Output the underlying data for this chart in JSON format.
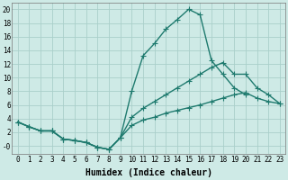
{
  "xlabel": "Humidex (Indice chaleur)",
  "bg_color": "#ceeae6",
  "grid_color": "#aacfca",
  "line_color": "#1e7a6e",
  "ylim": [
    -1.2,
    21.0
  ],
  "xlim": [
    -0.5,
    23.5
  ],
  "yticks": [
    0,
    2,
    4,
    6,
    8,
    10,
    12,
    14,
    16,
    18,
    20
  ],
  "ytick_labels": [
    "-0",
    "2",
    "4",
    "6",
    "8",
    "10",
    "12",
    "14",
    "16",
    "18",
    "20"
  ],
  "xticks": [
    0,
    1,
    2,
    3,
    4,
    5,
    6,
    7,
    8,
    9,
    10,
    11,
    12,
    13,
    14,
    15,
    16,
    17,
    18,
    19,
    20,
    21,
    22,
    23
  ],
  "line1_x": [
    0,
    1,
    2,
    3,
    4,
    5,
    6,
    7,
    8,
    9,
    10,
    11,
    12,
    13,
    14,
    15,
    16,
    17,
    18,
    19,
    20,
    21,
    22,
    23
  ],
  "line1_y": [
    3.5,
    2.8,
    2.2,
    2.2,
    1.0,
    0.8,
    0.5,
    -0.2,
    -0.5,
    1.2,
    8.0,
    13.2,
    15.0,
    17.1,
    18.5,
    20.0,
    19.2,
    12.5,
    10.5,
    8.5,
    7.5,
    null,
    null,
    null
  ],
  "line2_x": [
    0,
    1,
    2,
    3,
    4,
    5,
    6,
    7,
    8,
    9,
    10,
    11,
    12,
    13,
    14,
    15,
    16,
    17,
    18,
    19,
    20,
    21,
    22,
    23
  ],
  "line2_y": [
    3.5,
    2.8,
    2.2,
    2.2,
    1.0,
    0.8,
    0.5,
    -0.2,
    -0.5,
    1.2,
    4.2,
    5.5,
    6.5,
    7.5,
    8.5,
    9.5,
    10.5,
    11.5,
    12.2,
    10.5,
    10.5,
    8.5,
    7.5,
    6.2
  ],
  "line3_x": [
    0,
    1,
    2,
    3,
    4,
    5,
    6,
    7,
    8,
    9,
    10,
    11,
    12,
    13,
    14,
    15,
    16,
    17,
    18,
    19,
    20,
    21,
    22,
    23
  ],
  "line3_y": [
    3.5,
    2.8,
    2.2,
    2.2,
    1.0,
    0.8,
    0.5,
    -0.2,
    -0.5,
    1.2,
    3.0,
    3.8,
    4.2,
    4.8,
    5.2,
    5.6,
    6.0,
    6.5,
    7.0,
    7.5,
    7.8,
    7.0,
    6.5,
    6.2
  ],
  "marker": "+",
  "markersize": 4,
  "linewidth": 1.0,
  "font_family": "monospace",
  "tick_fontsize": 5.5,
  "xlabel_fontsize": 7
}
